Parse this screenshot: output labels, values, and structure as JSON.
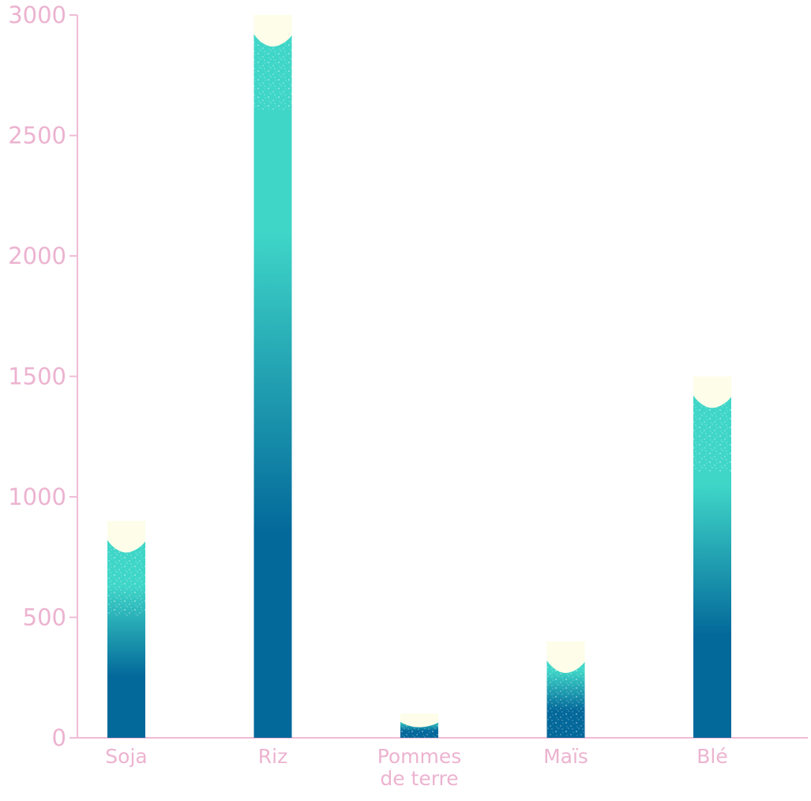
{
  "chart_data": {
    "type": "bar",
    "categories": [
      "Soja",
      "Riz",
      "Pommes de terre",
      "Maïs",
      "Blé"
    ],
    "category_lines": [
      [
        "Soja"
      ],
      [
        "Riz"
      ],
      [
        "Pommes",
        "de terre"
      ],
      [
        "Maïs"
      ],
      [
        "Blé"
      ]
    ],
    "values": [
      900,
      3000,
      100,
      400,
      1500
    ],
    "ylim": [
      0,
      3000
    ],
    "yticks": [
      0,
      500,
      1000,
      1500,
      2000,
      2500,
      3000
    ],
    "title": "",
    "xlabel": "",
    "ylabel": "",
    "grid": false,
    "legend": "none"
  },
  "colors": {
    "axis": "#f0bcd6",
    "label": "#ecb3d0",
    "bar_bottom": "#03689a",
    "bar_top": "#3fd6c8",
    "cap": "#fdfde9"
  }
}
